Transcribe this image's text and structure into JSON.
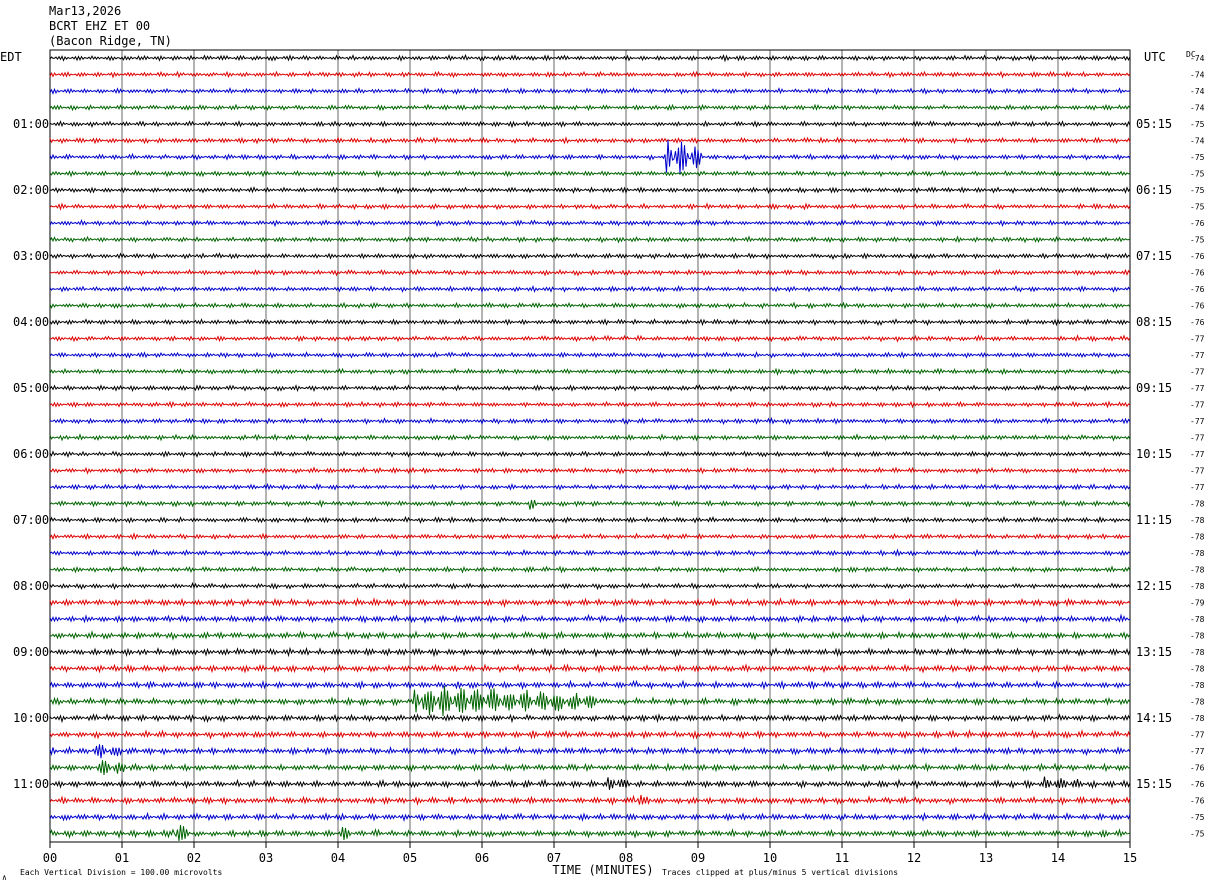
{
  "header": {
    "date": "Mar13,2026",
    "station": "BCRT EHZ ET 00",
    "location": "(Bacon Ridge, TN)"
  },
  "footer": {
    "scale_note": "Each Vertical Division =  100.00 microvolts",
    "clip_note": "Traces clipped at plus/minus 5 vertical divisions",
    "corner_mark": "∧"
  },
  "chart_data": {
    "type": "line",
    "title": "",
    "xlabel": "TIME (MINUTES)",
    "ylabel": "",
    "left_axis_label": "EDT",
    "right_axis_label": "UTC",
    "dc_label": "DC",
    "xlim": [
      0,
      15
    ],
    "x_ticks": [
      "00",
      "01",
      "02",
      "03",
      "04",
      "05",
      "06",
      "07",
      "08",
      "09",
      "10",
      "11",
      "12",
      "13",
      "14",
      "15"
    ],
    "grid": true,
    "row_minutes": 15,
    "trace_colors": [
      "#000000",
      "#dd0000",
      "#0000cc",
      "#006400"
    ],
    "left_hour_labels": [
      "01:00",
      "02:00",
      "03:00",
      "04:00",
      "05:00",
      "06:00",
      "07:00",
      "08:00",
      "09:00",
      "10:00",
      "11:00"
    ],
    "right_hour_labels": [
      "05:15",
      "06:15",
      "07:15",
      "08:15",
      "09:15",
      "10:15",
      "11:15",
      "12:15",
      "13:15",
      "14:15",
      "15:15"
    ],
    "hour_label_first_row": 4,
    "hour_label_row_step": 4,
    "dc_offsets": [
      "-74",
      "-74",
      "-74",
      "-74",
      "-75",
      "-74",
      "-75",
      "-75",
      "-75",
      "-75",
      "-76",
      "-75",
      "-76",
      "-76",
      "-76",
      "-76",
      "-76",
      "-77",
      "-77",
      "-77",
      "-77",
      "-77",
      "-77",
      "-77",
      "-77",
      "-77",
      "-77",
      "-78",
      "-78",
      "-78",
      "-78",
      "-78",
      "-78",
      "-79",
      "-78",
      "-78",
      "-78",
      "-78",
      "-78",
      "-78",
      "-78",
      "-77",
      "-77",
      "-76",
      "-76",
      "-76",
      "-75",
      "-75"
    ],
    "events": [
      {
        "row": 6,
        "minute": 8.55,
        "duration": 0.5,
        "amplitude": 1.3
      },
      {
        "row": 27,
        "minute": 6.65,
        "duration": 0.1,
        "amplitude": 0.35
      },
      {
        "row": 39,
        "minute": 5.05,
        "duration": 2.6,
        "amplitude": 0.9
      },
      {
        "row": 42,
        "minute": 0.6,
        "duration": 0.5,
        "amplitude": 0.35
      },
      {
        "row": 43,
        "minute": 0.65,
        "duration": 0.5,
        "amplitude": 0.35
      },
      {
        "row": 44,
        "minute": 7.75,
        "duration": 0.3,
        "amplitude": 0.4
      },
      {
        "row": 44,
        "minute": 13.8,
        "duration": 0.5,
        "amplitude": 0.35
      },
      {
        "row": 45,
        "minute": 8.1,
        "duration": 0.3,
        "amplitude": 0.3
      },
      {
        "row": 47,
        "minute": 1.7,
        "duration": 0.25,
        "amplitude": 0.6
      },
      {
        "row": 47,
        "minute": 4.05,
        "duration": 0.15,
        "amplitude": 0.4
      }
    ]
  }
}
